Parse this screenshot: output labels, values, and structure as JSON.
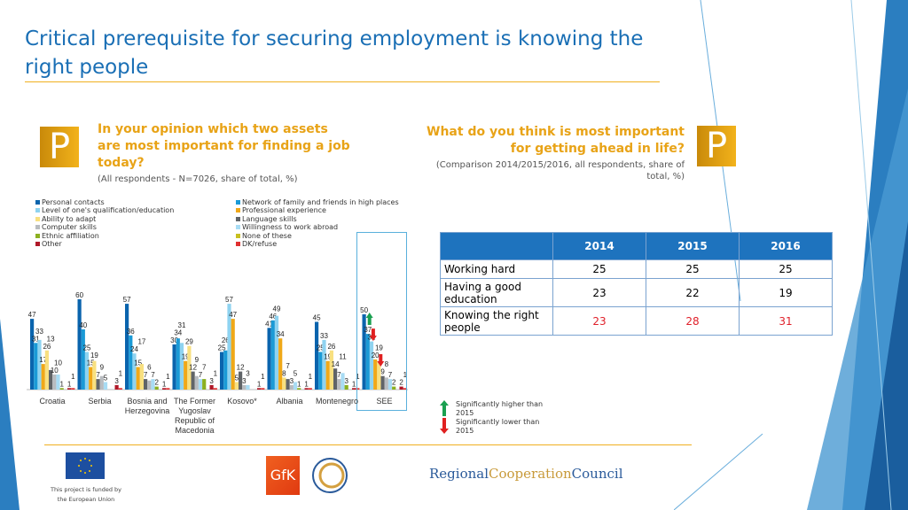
{
  "title": "Critical prerequisite for securing employment is knowing the right people",
  "left_panel": {
    "badge": "P",
    "question": "In your opinion which two assets are most important for finding a job today?",
    "subtitle": "(All respondents - N=7026, share of total, %)"
  },
  "right_panel": {
    "badge": "P",
    "question": "What do you think is most important for getting ahead in life?",
    "subtitle": "(Comparison 2014/2015/2016, all respondents, share of total, %)"
  },
  "chart_data": {
    "type": "bar",
    "categories": [
      "Croatia",
      "Serbia",
      "Bosnia and Herzegovina",
      "The Former Yugoslav Republic of Macedonia",
      "Kosovo*",
      "Albania",
      "Montenegro",
      "SEE"
    ],
    "legend_placement": "top",
    "grid": false,
    "ylim": [
      0,
      65
    ],
    "series": [
      {
        "name": "Personal contacts",
        "color": "#0a64ad",
        "values": [
          47,
          60,
          57,
          30,
          25,
          41,
          45,
          50
        ]
      },
      {
        "name": "Network of family and friends in high places",
        "color": "#1a9ad6",
        "values": [
          31,
          40,
          36,
          34,
          26,
          46,
          25,
          37
        ]
      },
      {
        "name": "Level of one's qualification/education",
        "color": "#8fd3f0",
        "values": [
          33,
          25,
          24,
          31,
          57,
          49,
          33,
          32
        ]
      },
      {
        "name": "Professional experience",
        "color": "#f0a818",
        "values": [
          17,
          15,
          15,
          19,
          47,
          34,
          19,
          20
        ]
      },
      {
        "name": "Ability to adapt",
        "color": "#f8e080",
        "values": [
          26,
          19,
          17,
          29,
          5,
          8,
          26,
          19
        ]
      },
      {
        "name": "Language skills",
        "color": "#606468",
        "values": [
          13,
          7,
          7,
          12,
          12,
          7,
          14,
          9
        ]
      },
      {
        "name": "Computer skills",
        "color": "#b8bcc0",
        "values": [
          10,
          9,
          6,
          9,
          3,
          3,
          7,
          8
        ]
      },
      {
        "name": "Willingness to work abroad",
        "color": "#a8dcf4",
        "values": [
          10,
          5,
          7,
          7,
          3,
          5,
          11,
          7
        ]
      },
      {
        "name": "Ethnic affiliation",
        "color": "#8cb020",
        "values": [
          1,
          0,
          2,
          7,
          0,
          1,
          3,
          2
        ]
      },
      {
        "name": "None of these",
        "color": "#c8c020",
        "values": [
          0,
          0,
          0,
          0,
          0,
          0,
          0,
          0
        ]
      },
      {
        "name": "Other",
        "color": "#b01828",
        "values": [
          1,
          3,
          1,
          3,
          1,
          1,
          1,
          2
        ]
      },
      {
        "name": "DK/refuse",
        "color": "#e03030",
        "values": [
          1,
          1,
          1,
          1,
          1,
          1,
          1,
          1
        ]
      }
    ],
    "significance": {
      "SEE": {
        "Personal contacts": "higher",
        "Network of family and friends in high places": "lower",
        "Professional experience": "lower"
      }
    }
  },
  "significance_legend": {
    "higher": "Significantly higher than 2015",
    "lower": "Significantly lower than 2015",
    "higher_color": "#1aa050",
    "lower_color": "#e02020"
  },
  "table": {
    "headers": [
      "",
      "2014",
      "2015",
      "2016"
    ],
    "rows": [
      {
        "label": "Working hard",
        "values": [
          "25",
          "25",
          "25"
        ]
      },
      {
        "label": "Having a good education",
        "values": [
          "23",
          "22",
          "19"
        ]
      },
      {
        "label": "Knowing the right people",
        "values": [
          "23",
          "28",
          "31"
        ],
        "highlight": "#e0202a"
      }
    ]
  },
  "footer": {
    "eu_text": "This project is funded by the European Union",
    "gfk": "GfK",
    "rcc": [
      "Regional",
      "Cooperation",
      "Council"
    ]
  }
}
